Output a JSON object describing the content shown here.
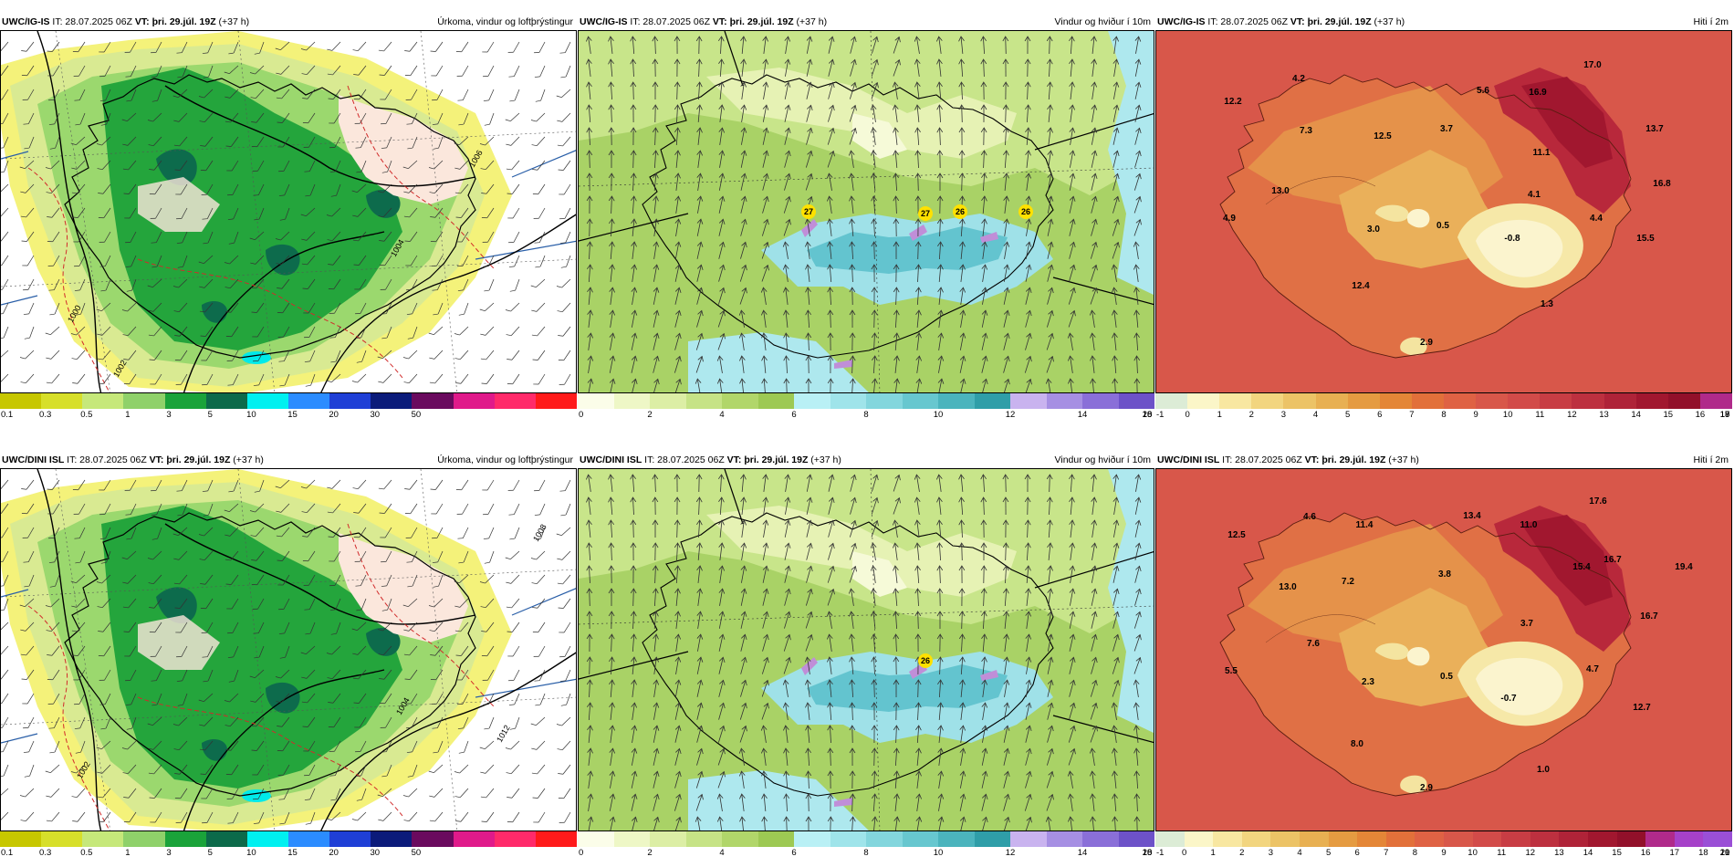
{
  "page": {
    "rows": [
      {
        "precip": {
          "model": "UWC/IG-IS",
          "it": "IT: 28.07.2025 06Z",
          "vt_label": "VT:",
          "vt": "þri. 29.júl. 19Z",
          "lead": "(+37 h)",
          "title": "Úrkoma, vindur og loftþrýstingur"
        },
        "wind": {
          "model": "UWC/IG-IS",
          "it": "IT: 28.07.2025 06Z",
          "vt_label": "VT:",
          "vt": "þri. 29.júl. 19Z",
          "lead": "(+37 h)",
          "title": "Vindur og hviður í 10m"
        },
        "temp": {
          "model": "UWC/IG-IS",
          "it": "IT: 28.07.2025 06Z",
          "vt_label": "VT:",
          "vt": "þri. 29.júl. 19Z",
          "lead": "(+37 h)",
          "title": "Hiti í 2m"
        }
      },
      {
        "precip": {
          "model": "UWC/DINI ISL",
          "it": "IT: 28.07.2025 06Z",
          "vt_label": "VT:",
          "vt": "þri. 29.júl. 19Z",
          "lead": "(+37 h)",
          "title": "Úrkoma, vindur og loftþrýstingur"
        },
        "wind": {
          "model": "UWC/DINI ISL",
          "it": "IT: 28.07.2025 06Z",
          "vt_label": "VT:",
          "vt": "þri. 29.júl. 19Z",
          "lead": "(+37 h)",
          "title": "Vindur og hviður í 10m"
        },
        "temp": {
          "model": "UWC/DINI ISL",
          "it": "IT: 28.07.2025 06Z",
          "vt_label": "VT:",
          "vt": "þri. 29.júl. 19Z",
          "lead": "(+37 h)",
          "title": "Hiti í 2m"
        }
      }
    ]
  },
  "scales": {
    "precip": {
      "colors": [
        "#c7c700",
        "#d7df2a",
        "#c6e87a",
        "#8fd16a",
        "#1aa33a",
        "#0c6a4a",
        "#00f0f0",
        "#2b8cff",
        "#1f3fd6",
        "#0b1b7a",
        "#6a0a5e",
        "#e01a8a",
        "#ff2a6a",
        "#ff1a1a"
      ],
      "ticks": [
        "0.1",
        "0.3",
        "0.5",
        "1",
        "3",
        "5",
        "10",
        "15",
        "20",
        "30",
        "50"
      ]
    },
    "wind": {
      "colors": [
        "#fbfde9",
        "#eef7c6",
        "#dceea5",
        "#c6e386",
        "#b1d66a",
        "#9dc953",
        "#b9f0f5",
        "#9fe4ea",
        "#83d6dd",
        "#67c7cf",
        "#4bb4bd",
        "#2f9ea8",
        "#c9b3ef",
        "#a68fe3",
        "#8a6fd8",
        "#6d52c8"
      ],
      "ticks": [
        "0",
        "2",
        "4",
        "6",
        "8",
        "10",
        "12",
        "14",
        "16",
        "18",
        "20"
      ]
    },
    "temp_top": {
      "colors": [
        "#dcecd6",
        "#fbf6c8",
        "#f8e7a1",
        "#f2d57f",
        "#ecc366",
        "#e8b052",
        "#e59b41",
        "#e48637",
        "#e2703a",
        "#df6244",
        "#d8574a",
        "#d24b49",
        "#c83d44",
        "#bd303f",
        "#af2338",
        "#a1172f",
        "#92102a",
        "#b02a8a"
      ],
      "ticks": [
        "-1",
        "0",
        "1",
        "2",
        "3",
        "4",
        "5",
        "6",
        "7",
        "8",
        "9",
        "10",
        "11",
        "12",
        "13",
        "14",
        "15",
        "16",
        "17",
        "18",
        "19"
      ]
    },
    "temp_bottom": {
      "colors": [
        "#dcecd6",
        "#fbf6c8",
        "#f8e7a1",
        "#f2d57f",
        "#ecc366",
        "#e8b052",
        "#e59b41",
        "#e48637",
        "#e2703a",
        "#df6244",
        "#d8574a",
        "#d24b49",
        "#c83d44",
        "#bd303f",
        "#af2338",
        "#a1172f",
        "#92102a",
        "#b02a8a",
        "#a641c9",
        "#9a4fd6"
      ],
      "ticks": [
        "-1",
        "0",
        "1",
        "2",
        "3",
        "4",
        "5",
        "6",
        "7",
        "8",
        "9",
        "10",
        "11",
        "12",
        "13",
        "14",
        "15",
        "16",
        "17",
        "18",
        "19",
        "20",
        "21"
      ]
    }
  },
  "values": {
    "temp_top": [
      "17.0",
      "4.2",
      "12.2",
      "5.6",
      "16.9",
      "7.3",
      "12.5",
      "3.7",
      "11.1",
      "13.7",
      "16.8",
      "13.0",
      "4.1",
      "4.9",
      "3.0",
      "0.5",
      "4.4",
      "-0.8",
      "15.5",
      "12.4",
      "1.3",
      "2.9"
    ],
    "temp_bottom": [
      "17.6",
      "4.6",
      "13.4",
      "11.0",
      "12.5",
      "11.4",
      "16.7",
      "15.4",
      "19.4",
      "13.0",
      "3.8",
      "7.2",
      "16.7",
      "7.6",
      "3.7",
      "5.5",
      "2.3",
      "0.5",
      "4.7",
      "-0.7",
      "12.7",
      "8.0",
      "1.0",
      "2.9"
    ],
    "gust_top": [
      "27",
      "27",
      "26",
      "26"
    ],
    "gust_bottom": [
      "26"
    ],
    "isobars_top": [
      "1006",
      "1004",
      "1002",
      "1000"
    ],
    "isobars_bottom": [
      "1008",
      "1002",
      "1012",
      "1004"
    ]
  }
}
